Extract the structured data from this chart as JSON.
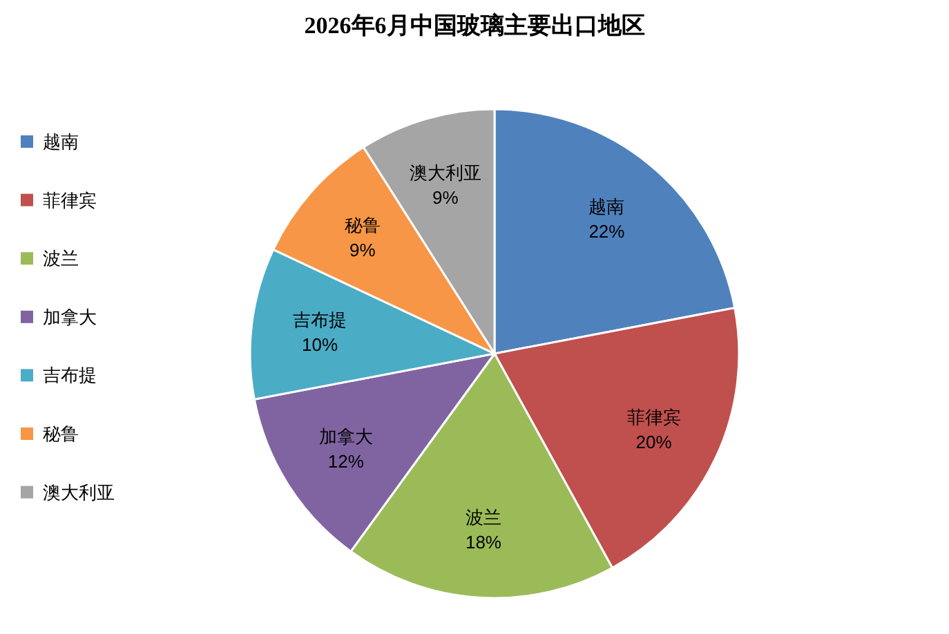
{
  "chart_data": {
    "type": "pie",
    "title": "2026年6月中国玻璃主要出口地区",
    "categories": [
      "越南",
      "菲律宾",
      "波兰",
      "加拿大",
      "吉布提",
      "秘鲁",
      "澳大利亚"
    ],
    "values": [
      22,
      20,
      18,
      12,
      10,
      9,
      9
    ],
    "colors": [
      "#4f81bd",
      "#c0504d",
      "#9bbb59",
      "#8064a2",
      "#4bacc6",
      "#f79646",
      "#a5a5a5"
    ],
    "value_labels": [
      "22%",
      "20%",
      "18%",
      "12%",
      "10%",
      "9%",
      "9%"
    ],
    "legend": "left"
  }
}
